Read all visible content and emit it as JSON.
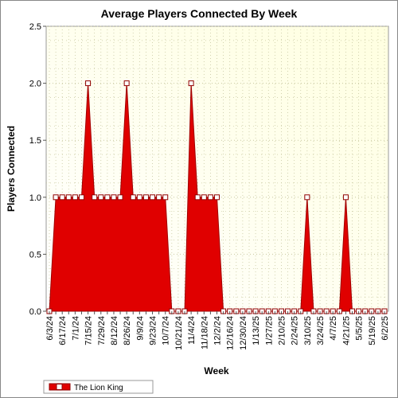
{
  "chart_data": {
    "type": "area",
    "title": "Average Players Connected By Week",
    "xlabel": "Week",
    "ylabel": "Players Connected",
    "ylim": [
      0,
      2.5
    ],
    "yticks": [
      "0.0",
      "0.5",
      "1.0",
      "1.5",
      "2.0",
      "2.5"
    ],
    "x": [
      "6/3/24",
      "6/10/24",
      "6/17/24",
      "6/24/24",
      "7/1/24",
      "7/8/24",
      "7/15/24",
      "7/22/24",
      "7/29/24",
      "8/5/24",
      "8/12/24",
      "8/19/24",
      "8/26/24",
      "9/2/24",
      "9/9/24",
      "9/16/24",
      "9/23/24",
      "9/30/24",
      "10/7/24",
      "10/14/24",
      "10/21/24",
      "10/28/24",
      "11/4/24",
      "11/11/24",
      "11/18/24",
      "11/25/24",
      "12/2/24",
      "12/9/24",
      "12/16/24",
      "12/23/24",
      "12/30/24",
      "1/6/25",
      "1/13/25",
      "1/20/25",
      "1/27/25",
      "2/3/25",
      "2/10/25",
      "2/17/25",
      "2/24/25",
      "3/3/25",
      "3/10/25",
      "3/17/25",
      "3/24/25",
      "3/31/25",
      "4/7/25",
      "4/14/25",
      "4/21/25",
      "4/28/25",
      "5/5/25",
      "5/12/25",
      "5/19/25",
      "5/26/25",
      "6/2/25"
    ],
    "xtick_labels": [
      "6/3/24",
      "6/17/24",
      "7/1/24",
      "7/15/24",
      "7/29/24",
      "8/12/24",
      "8/26/24",
      "9/9/24",
      "9/23/24",
      "10/7/24",
      "10/21/24",
      "11/4/24",
      "11/18/24",
      "12/2/24",
      "12/16/24",
      "12/30/24",
      "1/13/25",
      "1/27/25",
      "2/10/25",
      "2/24/25",
      "3/10/25",
      "3/24/25",
      "4/7/25",
      "4/21/25",
      "5/5/25",
      "5/19/25",
      "6/2/25"
    ],
    "series": [
      {
        "name": "The Lion King",
        "color": "#e00000",
        "values": [
          0,
          1,
          1,
          1,
          1,
          1,
          2,
          1,
          1,
          1,
          1,
          1,
          2,
          1,
          1,
          1,
          1,
          1,
          1,
          0,
          0,
          0,
          2,
          1,
          1,
          1,
          1,
          0,
          0,
          0,
          0,
          0,
          0,
          0,
          0,
          0,
          0,
          0,
          0,
          0,
          1,
          0,
          0,
          0,
          0,
          0,
          1,
          0,
          0,
          0,
          0,
          0,
          0
        ]
      }
    ],
    "grid": true,
    "legend": "bottom-left",
    "colors": {
      "plot_background": "#ffffe0",
      "grid": "#c8c8a0"
    }
  }
}
